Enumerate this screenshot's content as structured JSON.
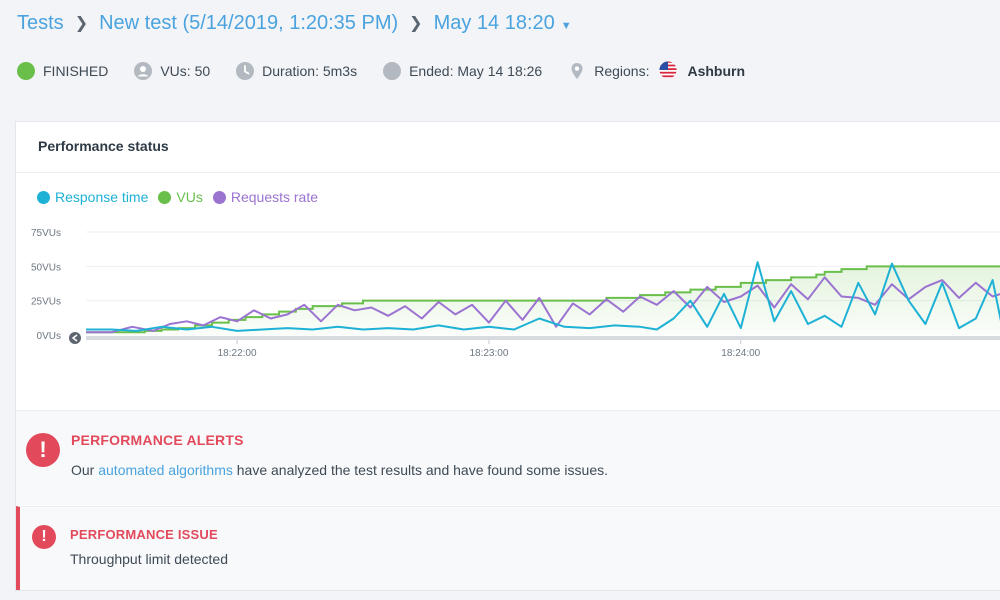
{
  "breadcrumb": {
    "root": "Tests",
    "test": "New test (5/14/2019, 1:20:35 PM)",
    "run": "May 14 18:20"
  },
  "meta": {
    "status": "FINISHED",
    "vus": "VUs: 50",
    "duration": "Duration: 5m3s",
    "ended": "Ended: May 14 18:26",
    "regions_label": "Regions:",
    "region": "Ashburn"
  },
  "colors": {
    "accent": "#4aa3df",
    "finished": "#6abf4b",
    "alert": "#e24a5c",
    "response_time": "#1eb1d6",
    "vus": "#6abf4b",
    "requests_rate": "#9b73d1"
  },
  "performance": {
    "title": "Performance status",
    "legend": {
      "response_time": "Response time",
      "vus": "VUs",
      "requests_rate": "Requests rate"
    }
  },
  "chart_data": {
    "type": "line",
    "y_ticks": [
      "75VUs",
      "50VUs",
      "25VUs",
      "0VUs"
    ],
    "ylim": [
      0,
      75
    ],
    "x_ticks": [
      "18:22:00",
      "18:23:00",
      "18:24:00"
    ],
    "x_tick_seconds": [
      160,
      220,
      280
    ],
    "xlim": [
      124,
      342
    ],
    "series": [
      {
        "name": "VUs",
        "step": true,
        "x": [
          124,
          138,
          142,
          146,
          150,
          154,
          158,
          162,
          166,
          170,
          174,
          178,
          185,
          190,
          240,
          248,
          256,
          262,
          268,
          274,
          280,
          286,
          292,
          298,
          300,
          304,
          310,
          342
        ],
        "values": [
          2,
          3,
          4,
          5,
          7,
          9,
          11,
          13,
          15,
          17,
          19,
          21,
          23,
          25,
          25,
          27,
          29,
          31,
          33,
          35,
          38,
          40,
          42,
          44,
          46,
          48,
          50,
          50
        ]
      },
      {
        "name": "Requests rate",
        "x": [
          124,
          130,
          135,
          140,
          144,
          148,
          152,
          156,
          160,
          164,
          168,
          172,
          176,
          180,
          184,
          188,
          192,
          196,
          200,
          204,
          208,
          212,
          216,
          220,
          224,
          228,
          232,
          236,
          240,
          244,
          248,
          252,
          256,
          260,
          264,
          268,
          272,
          276,
          280,
          284,
          288,
          292,
          296,
          300,
          304,
          308,
          312,
          316,
          320,
          324,
          328,
          332,
          336,
          340,
          342
        ],
        "values": [
          2,
          2,
          6,
          3,
          8,
          10,
          7,
          13,
          10,
          18,
          12,
          15,
          22,
          10,
          22,
          18,
          20,
          14,
          21,
          12,
          24,
          15,
          22,
          9,
          25,
          11,
          27,
          6,
          23,
          15,
          26,
          17,
          28,
          22,
          32,
          20,
          35,
          24,
          28,
          36,
          20,
          37,
          26,
          42,
          28,
          27,
          22,
          37,
          26,
          35,
          40,
          27,
          38,
          28,
          30
        ]
      },
      {
        "name": "Response time",
        "x": [
          124,
          130,
          136,
          142,
          148,
          154,
          160,
          166,
          172,
          178,
          184,
          190,
          196,
          202,
          208,
          214,
          220,
          226,
          232,
          238,
          244,
          250,
          256,
          260,
          264,
          268,
          272,
          276,
          280,
          284,
          288,
          292,
          296,
          300,
          304,
          308,
          312,
          316,
          320,
          324,
          328,
          332,
          336,
          340,
          342
        ],
        "values": [
          4,
          4,
          3,
          6,
          4,
          6,
          3,
          4,
          5,
          4,
          6,
          4,
          5,
          4,
          7,
          4,
          6,
          4,
          12,
          6,
          5,
          7,
          6,
          4,
          12,
          25,
          6,
          30,
          5,
          53,
          10,
          32,
          8,
          14,
          6,
          38,
          15,
          52,
          25,
          8,
          38,
          5,
          12,
          40,
          10
        ]
      }
    ]
  },
  "alerts": {
    "icon": "!",
    "title": "PERFORMANCE ALERTS",
    "text_before": "Our",
    "link": "automated algorithms",
    "text_after": "have analyzed the test results and have found some issues."
  },
  "issue": {
    "icon": "!",
    "title": "PERFORMANCE ISSUE",
    "text": "Throughput limit detected"
  }
}
